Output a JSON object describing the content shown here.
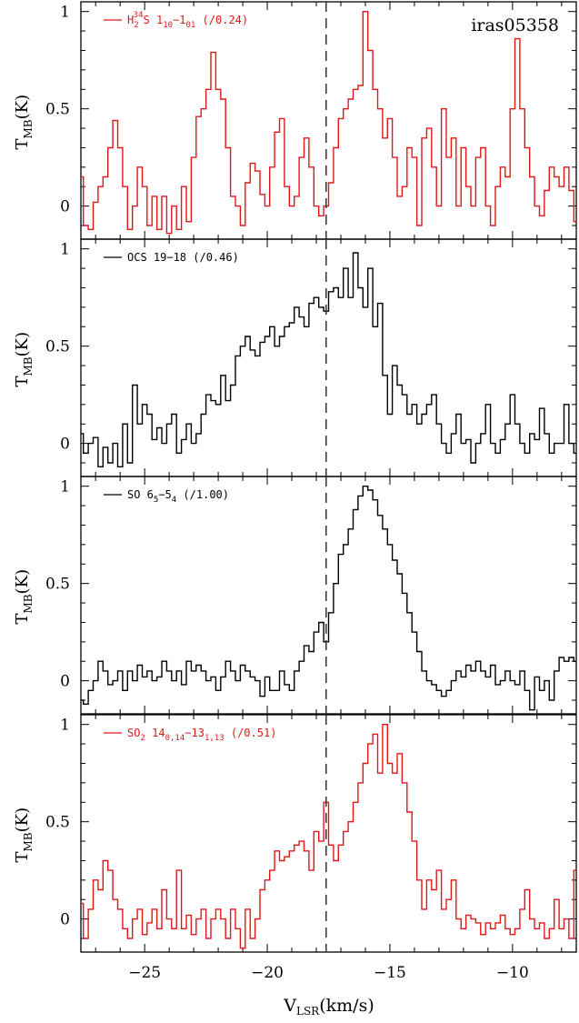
{
  "figure": {
    "source_label": "iras05358",
    "xlabel": "V",
    "xlabel_sub": "LSR",
    "xlabel_unit": "(km/s)",
    "ylabel": "T",
    "ylabel_sub": "MB",
    "ylabel_unit": "(K)",
    "dashed_line_velocity": -17.6,
    "x_ticks": [
      "−25",
      "−20",
      "−15",
      "−10"
    ]
  },
  "chart_data": [
    {
      "type": "line",
      "step": true,
      "color": "#e01818",
      "legend": {
        "parts": [
          "H",
          "2",
          "34",
          "S 1",
          "10",
          "−1",
          "01",
          " (/0.24)"
        ]
      },
      "xlim": [
        -27.6,
        -7.4
      ],
      "ylim": [
        -0.17,
        1.05
      ],
      "y_ticks": [
        0,
        0.5,
        1
      ],
      "y_tick_labels": [
        "0",
        "0.5",
        "1"
      ],
      "x": [
        -27.6,
        -27.4,
        -27.2,
        -27.0,
        -26.8,
        -26.6,
        -26.4,
        -26.2,
        -26.0,
        -25.8,
        -25.6,
        -25.4,
        -25.2,
        -25.0,
        -24.8,
        -24.6,
        -24.4,
        -24.2,
        -24.0,
        -23.8,
        -23.6,
        -23.4,
        -23.2,
        -23.0,
        -22.8,
        -22.6,
        -22.4,
        -22.2,
        -22.0,
        -21.8,
        -21.6,
        -21.4,
        -21.2,
        -21.0,
        -20.8,
        -20.6,
        -20.4,
        -20.2,
        -20.0,
        -19.8,
        -19.6,
        -19.4,
        -19.2,
        -19.0,
        -18.8,
        -18.6,
        -18.4,
        -18.2,
        -18.0,
        -17.8,
        -17.6,
        -17.4,
        -17.2,
        -17.0,
        -16.8,
        -16.6,
        -16.4,
        -16.2,
        -16.0,
        -15.8,
        -15.6,
        -15.4,
        -15.2,
        -15.0,
        -14.8,
        -14.6,
        -14.4,
        -14.2,
        -14.0,
        -13.8,
        -13.6,
        -13.4,
        -13.2,
        -13.0,
        -12.8,
        -12.6,
        -12.4,
        -12.2,
        -12.0,
        -11.8,
        -11.6,
        -11.4,
        -11.2,
        -11.0,
        -10.8,
        -10.6,
        -10.4,
        -10.2,
        -10.0,
        -9.8,
        -9.6,
        -9.4,
        -9.2,
        -9.0,
        -8.8,
        -8.6,
        -8.4,
        -8.2,
        -8.0,
        -7.8,
        -7.6,
        -7.4
      ],
      "y": [
        0.15,
        -0.1,
        -0.12,
        0.02,
        0.1,
        0.15,
        0.3,
        0.44,
        0.3,
        0.1,
        -0.12,
        0.0,
        0.2,
        0.1,
        -0.1,
        0.05,
        -0.12,
        0.05,
        -0.14,
        0.0,
        -0.12,
        0.1,
        -0.08,
        0.25,
        0.46,
        0.5,
        0.6,
        0.79,
        0.6,
        0.55,
        0.3,
        0.05,
        0.0,
        -0.1,
        0.12,
        0.22,
        0.18,
        0.06,
        0.0,
        0.2,
        0.38,
        0.45,
        0.1,
        0.0,
        0.05,
        0.25,
        0.35,
        0.2,
        0.0,
        -0.05,
        0.0,
        0.12,
        0.3,
        0.45,
        0.5,
        0.55,
        0.6,
        0.62,
        1.0,
        0.8,
        0.6,
        0.5,
        0.35,
        0.45,
        0.25,
        0.05,
        0.1,
        0.3,
        0.25,
        -0.1,
        0.35,
        0.4,
        0.2,
        0.0,
        0.5,
        0.25,
        0.35,
        0.0,
        0.3,
        0.1,
        0.0,
        0.25,
        0.3,
        0.0,
        -0.1,
        0.1,
        0.2,
        0.15,
        0.5,
        0.86,
        0.5,
        0.3,
        0.15,
        0.0,
        -0.05,
        0.08,
        0.2,
        0.15,
        0.1,
        0.2,
        0.08,
        -0.08
      ]
    },
    {
      "type": "line",
      "step": true,
      "color": "#000000",
      "legend": {
        "parts": [
          "OCS 19−18 (/0.46)"
        ]
      },
      "xlim": [
        -27.6,
        -7.4
      ],
      "ylim": [
        -0.17,
        1.05
      ],
      "y_ticks": [
        0,
        0.5,
        1
      ],
      "y_tick_labels": [
        "0",
        "0.5",
        "1"
      ],
      "x": [
        -27.6,
        -27.4,
        -27.2,
        -27.0,
        -26.8,
        -26.6,
        -26.4,
        -26.2,
        -26.0,
        -25.8,
        -25.6,
        -25.4,
        -25.2,
        -25.0,
        -24.8,
        -24.6,
        -24.4,
        -24.2,
        -24.0,
        -23.8,
        -23.6,
        -23.4,
        -23.2,
        -23.0,
        -22.8,
        -22.6,
        -22.4,
        -22.2,
        -22.0,
        -21.8,
        -21.6,
        -21.4,
        -21.2,
        -21.0,
        -20.8,
        -20.6,
        -20.4,
        -20.2,
        -20.0,
        -19.8,
        -19.6,
        -19.4,
        -19.2,
        -19.0,
        -18.8,
        -18.6,
        -18.4,
        -18.2,
        -18.0,
        -17.8,
        -17.6,
        -17.4,
        -17.2,
        -17.0,
        -16.8,
        -16.6,
        -16.4,
        -16.2,
        -16.0,
        -15.8,
        -15.6,
        -15.4,
        -15.2,
        -15.0,
        -14.8,
        -14.6,
        -14.4,
        -14.2,
        -14.0,
        -13.8,
        -13.6,
        -13.4,
        -13.2,
        -13.0,
        -12.8,
        -12.6,
        -12.4,
        -12.2,
        -12.0,
        -11.8,
        -11.6,
        -11.4,
        -11.2,
        -11.0,
        -10.8,
        -10.6,
        -10.4,
        -10.2,
        -10.0,
        -9.8,
        -9.6,
        -9.4,
        -9.2,
        -9.0,
        -8.8,
        -8.6,
        -8.4,
        -8.2,
        -8.0,
        -7.8,
        -7.6,
        -7.4
      ],
      "y": [
        0.05,
        -0.05,
        0.0,
        0.03,
        -0.12,
        -0.02,
        -0.1,
        0.0,
        -0.12,
        0.1,
        -0.1,
        0.3,
        0.1,
        0.2,
        0.15,
        0.02,
        0.08,
        0.0,
        0.1,
        0.15,
        -0.05,
        0.02,
        0.1,
        0.0,
        0.05,
        0.15,
        0.25,
        0.22,
        0.2,
        0.35,
        0.22,
        0.3,
        0.45,
        0.5,
        0.55,
        0.48,
        0.45,
        0.52,
        0.55,
        0.6,
        0.5,
        0.55,
        0.6,
        0.62,
        0.7,
        0.65,
        0.6,
        0.72,
        0.75,
        0.7,
        0.68,
        0.78,
        0.8,
        0.75,
        0.9,
        0.75,
        0.98,
        0.8,
        0.7,
        0.9,
        0.6,
        0.72,
        0.35,
        0.15,
        0.4,
        0.3,
        0.25,
        0.15,
        0.2,
        0.1,
        0.15,
        0.2,
        0.25,
        0.1,
        0.0,
        -0.05,
        0.05,
        0.15,
        0.0,
        0.02,
        -0.1,
        0.0,
        0.05,
        0.2,
        0.0,
        -0.05,
        0.02,
        0.1,
        0.25,
        0.1,
        0.0,
        -0.05,
        0.05,
        0.02,
        0.18,
        0.05,
        -0.05,
        0.0,
        0.0,
        0.2,
        0.0,
        -0.05
      ]
    },
    {
      "type": "line",
      "step": true,
      "color": "#000000",
      "legend": {
        "parts": [
          "SO 6",
          "5",
          "−5",
          "4",
          " (/1.00)"
        ]
      },
      "xlim": [
        -27.6,
        -7.4
      ],
      "ylim": [
        -0.17,
        1.05
      ],
      "y_ticks": [
        0,
        0.5,
        1
      ],
      "y_tick_labels": [
        "0",
        "0.5",
        "1"
      ],
      "x": [
        -27.6,
        -27.4,
        -27.2,
        -27.0,
        -26.8,
        -26.6,
        -26.4,
        -26.2,
        -26.0,
        -25.8,
        -25.6,
        -25.4,
        -25.2,
        -25.0,
        -24.8,
        -24.6,
        -24.4,
        -24.2,
        -24.0,
        -23.8,
        -23.6,
        -23.4,
        -23.2,
        -23.0,
        -22.8,
        -22.6,
        -22.4,
        -22.2,
        -22.0,
        -21.8,
        -21.6,
        -21.4,
        -21.2,
        -21.0,
        -20.8,
        -20.6,
        -20.4,
        -20.2,
        -20.0,
        -19.8,
        -19.6,
        -19.4,
        -19.2,
        -19.0,
        -18.8,
        -18.6,
        -18.4,
        -18.2,
        -18.0,
        -17.8,
        -17.6,
        -17.4,
        -17.2,
        -17.0,
        -16.8,
        -16.6,
        -16.4,
        -16.2,
        -16.0,
        -15.8,
        -15.6,
        -15.4,
        -15.2,
        -15.0,
        -14.8,
        -14.6,
        -14.4,
        -14.2,
        -14.0,
        -13.8,
        -13.6,
        -13.4,
        -13.2,
        -13.0,
        -12.8,
        -12.6,
        -12.4,
        -12.2,
        -12.0,
        -11.8,
        -11.6,
        -11.4,
        -11.2,
        -11.0,
        -10.8,
        -10.6,
        -10.4,
        -10.2,
        -10.0,
        -9.8,
        -9.6,
        -9.4,
        -9.2,
        -9.0,
        -8.8,
        -8.6,
        -8.4,
        -8.2,
        -8.0,
        -7.8,
        -7.6,
        -7.4
      ],
      "y": [
        -0.1,
        -0.12,
        -0.05,
        0.0,
        0.1,
        0.05,
        -0.02,
        0.0,
        0.05,
        -0.05,
        0.05,
        0.0,
        0.08,
        0.02,
        0.05,
        0.0,
        0.02,
        0.1,
        0.05,
        0.0,
        0.05,
        -0.02,
        0.1,
        0.05,
        0.08,
        0.05,
        0.0,
        0.02,
        -0.05,
        0.02,
        0.1,
        0.05,
        0.0,
        0.08,
        0.05,
        0.02,
        0.0,
        -0.08,
        0.02,
        -0.05,
        -0.05,
        0.05,
        -0.02,
        -0.05,
        0.05,
        0.1,
        0.18,
        0.15,
        0.25,
        0.3,
        0.2,
        0.35,
        0.5,
        0.65,
        0.7,
        0.78,
        0.88,
        0.95,
        1.0,
        0.98,
        0.93,
        0.85,
        0.78,
        0.7,
        0.62,
        0.55,
        0.45,
        0.35,
        0.25,
        0.15,
        0.05,
        0.0,
        -0.02,
        -0.05,
        -0.08,
        -0.05,
        0.0,
        0.05,
        0.02,
        0.08,
        0.05,
        0.1,
        0.05,
        0.02,
        0.08,
        -0.02,
        0.0,
        0.05,
        0.0,
        -0.02,
        0.05,
        -0.05,
        -0.15,
        0.02,
        -0.05,
        0.0,
        -0.1,
        0.05,
        0.12,
        0.1,
        0.12,
        0.1
      ]
    },
    {
      "type": "line",
      "step": true,
      "color": "#e01818",
      "legend": {
        "parts": [
          "SO",
          "2",
          " 14",
          "0,14",
          "−13",
          "1,13",
          " (/0.51)"
        ]
      },
      "xlim": [
        -27.6,
        -7.4
      ],
      "ylim": [
        -0.17,
        1.05
      ],
      "y_ticks": [
        0,
        0.5,
        1
      ],
      "y_tick_labels": [
        "0",
        "0.5",
        "1"
      ],
      "x": [
        -27.6,
        -27.4,
        -27.2,
        -27.0,
        -26.8,
        -26.6,
        -26.4,
        -26.2,
        -26.0,
        -25.8,
        -25.6,
        -25.4,
        -25.2,
        -25.0,
        -24.8,
        -24.6,
        -24.4,
        -24.2,
        -24.0,
        -23.8,
        -23.6,
        -23.4,
        -23.2,
        -23.0,
        -22.8,
        -22.6,
        -22.4,
        -22.2,
        -22.0,
        -21.8,
        -21.6,
        -21.4,
        -21.2,
        -21.0,
        -20.8,
        -20.6,
        -20.4,
        -20.2,
        -20.0,
        -19.8,
        -19.6,
        -19.4,
        -19.2,
        -19.0,
        -18.8,
        -18.6,
        -18.4,
        -18.2,
        -18.0,
        -17.8,
        -17.6,
        -17.4,
        -17.2,
        -17.0,
        -16.8,
        -16.6,
        -16.4,
        -16.2,
        -16.0,
        -15.8,
        -15.6,
        -15.4,
        -15.2,
        -15.0,
        -14.8,
        -14.6,
        -14.4,
        -14.2,
        -14.0,
        -13.8,
        -13.6,
        -13.4,
        -13.2,
        -13.0,
        -12.8,
        -12.6,
        -12.4,
        -12.2,
        -12.0,
        -11.8,
        -11.6,
        -11.4,
        -11.2,
        -11.0,
        -10.8,
        -10.6,
        -10.4,
        -10.2,
        -10.0,
        -9.8,
        -9.6,
        -9.4,
        -9.2,
        -9.0,
        -8.8,
        -8.6,
        -8.4,
        -8.2,
        -8.0,
        -7.8,
        -7.6,
        -7.4
      ],
      "y": [
        0.08,
        -0.1,
        0.05,
        0.2,
        0.15,
        0.3,
        0.25,
        0.1,
        0.05,
        -0.05,
        -0.1,
        0.0,
        0.05,
        -0.08,
        -0.02,
        0.05,
        -0.05,
        0.15,
        0.0,
        -0.05,
        0.25,
        -0.05,
        0.02,
        -0.08,
        0.0,
        0.05,
        -0.1,
        0.0,
        0.05,
        0.0,
        -0.1,
        0.05,
        -0.05,
        -0.15,
        0.05,
        -0.1,
        0.0,
        0.15,
        0.2,
        0.25,
        0.35,
        0.3,
        0.32,
        0.35,
        0.38,
        0.4,
        0.35,
        0.25,
        0.45,
        0.4,
        0.6,
        0.38,
        0.3,
        0.38,
        0.45,
        0.5,
        0.6,
        0.7,
        0.8,
        0.9,
        0.95,
        0.75,
        1.0,
        0.8,
        0.75,
        0.85,
        0.7,
        0.55,
        0.4,
        0.2,
        0.05,
        0.2,
        0.15,
        0.25,
        0.05,
        0.1,
        0.2,
        0.0,
        -0.05,
        0.02,
        0.0,
        -0.02,
        -0.08,
        -0.02,
        -0.05,
        -0.02,
        0.02,
        -0.05,
        -0.08,
        -0.05,
        0.05,
        0.15,
        0.0,
        -0.05,
        -0.02,
        -0.1,
        -0.05,
        0.1,
        -0.05,
        0.0,
        -0.1,
        0.25
      ]
    }
  ]
}
